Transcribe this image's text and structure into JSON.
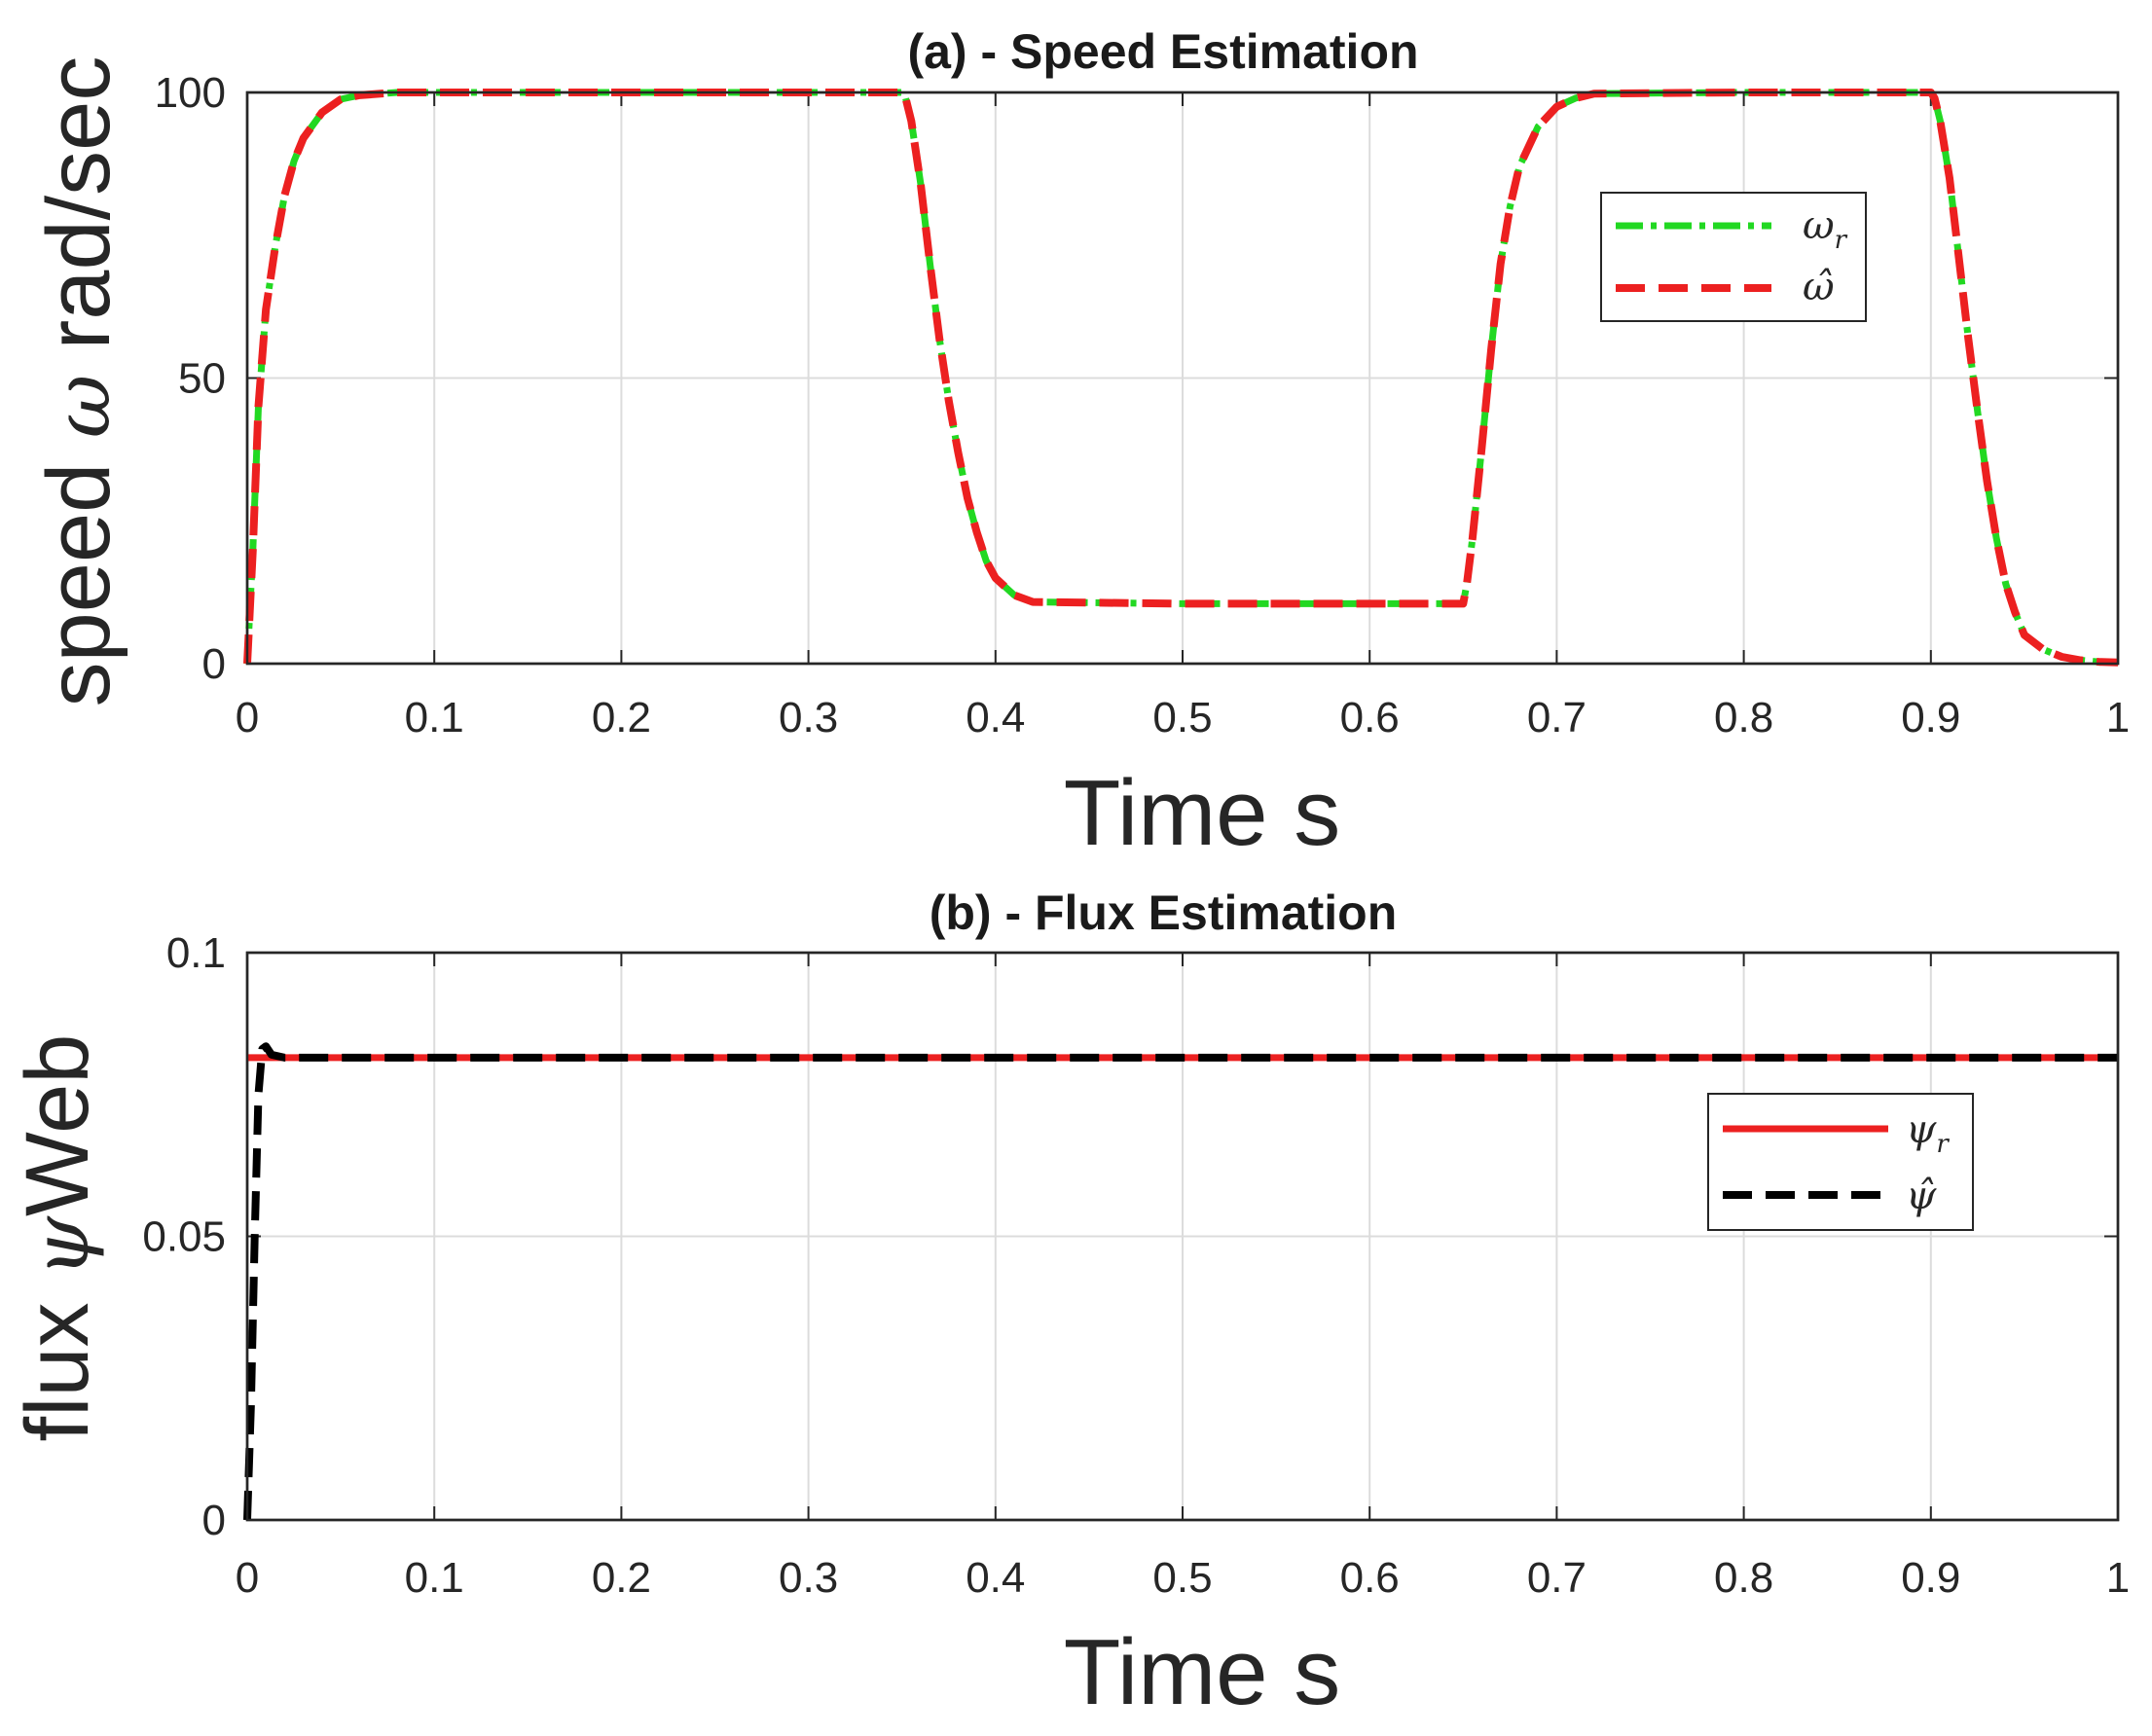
{
  "chart_data": [
    {
      "type": "line",
      "title": "(a) - Speed Estimation",
      "xlabel": "Time s",
      "ylabel_prefix": "speed ",
      "ylabel_symbol": "ω",
      "ylabel_suffix": " rad/sec",
      "xlim": [
        0,
        1
      ],
      "ylim": [
        0,
        100
      ],
      "xticks": [
        0,
        0.1,
        0.2,
        0.3,
        0.4,
        0.5,
        0.6,
        0.7,
        0.8,
        0.9,
        1
      ],
      "xtick_labels": [
        "0",
        "0.1",
        "0.2",
        "0.3",
        "0.4",
        "0.5",
        "0.6",
        "0.7",
        "0.8",
        "0.9",
        "1"
      ],
      "yticks": [
        0,
        50,
        100
      ],
      "ytick_labels": [
        "0",
        "50",
        "100"
      ],
      "grid": true,
      "legend_position": "upper-right",
      "series": [
        {
          "name": "ω_r",
          "legend_label": "ωr",
          "color": "#22d822",
          "dash": "dash-dot",
          "x": [
            0,
            0.003,
            0.006,
            0.01,
            0.015,
            0.02,
            0.025,
            0.03,
            0.04,
            0.05,
            0.06,
            0.08,
            0.1,
            0.2,
            0.3,
            0.35,
            0.352,
            0.355,
            0.36,
            0.365,
            0.37,
            0.375,
            0.38,
            0.385,
            0.39,
            0.395,
            0.4,
            0.41,
            0.42,
            0.5,
            0.6,
            0.65,
            0.652,
            0.655,
            0.66,
            0.665,
            0.67,
            0.675,
            0.68,
            0.69,
            0.7,
            0.71,
            0.72,
            0.8,
            0.9,
            0.902,
            0.905,
            0.91,
            0.915,
            0.92,
            0.925,
            0.93,
            0.935,
            0.94,
            0.945,
            0.95,
            0.96,
            0.97,
            0.98,
            0.99,
            1.0
          ],
          "y": [
            0,
            20,
            45,
            62,
            73,
            82,
            88,
            92,
            96.5,
            98.8,
            99.5,
            100,
            100,
            100,
            100,
            100,
            99,
            95,
            84,
            70,
            57,
            46,
            37,
            29,
            23,
            18,
            15,
            12,
            10.8,
            10.5,
            10.5,
            10.5,
            14,
            22,
            38,
            55,
            70,
            80,
            87,
            94,
            97.5,
            99,
            99.8,
            100,
            100,
            99,
            95,
            85,
            71,
            57,
            44,
            32,
            22,
            14,
            9,
            5,
            2.5,
            1.2,
            0.6,
            0.3,
            0.2
          ]
        },
        {
          "name": "ω̂",
          "legend_label": "ω̂",
          "color": "#ec2020",
          "dash": "dashed",
          "x": [
            0,
            0.003,
            0.006,
            0.01,
            0.015,
            0.02,
            0.025,
            0.03,
            0.04,
            0.05,
            0.06,
            0.08,
            0.1,
            0.2,
            0.3,
            0.35,
            0.352,
            0.355,
            0.36,
            0.365,
            0.37,
            0.375,
            0.38,
            0.385,
            0.39,
            0.395,
            0.4,
            0.41,
            0.42,
            0.5,
            0.6,
            0.65,
            0.652,
            0.655,
            0.66,
            0.665,
            0.67,
            0.675,
            0.68,
            0.69,
            0.7,
            0.71,
            0.72,
            0.8,
            0.9,
            0.902,
            0.905,
            0.91,
            0.915,
            0.92,
            0.925,
            0.93,
            0.935,
            0.94,
            0.945,
            0.95,
            0.96,
            0.97,
            0.98,
            0.99,
            1.0
          ],
          "y": [
            0,
            20,
            45,
            62,
            73,
            82,
            88,
            92,
            96.5,
            98.8,
            99.5,
            100,
            100,
            100,
            100,
            100,
            99,
            95,
            84,
            70,
            57,
            46,
            37,
            29,
            23,
            18,
            15,
            12,
            10.8,
            10.5,
            10.5,
            10.5,
            14,
            22,
            38,
            55,
            70,
            80,
            87,
            94,
            97.5,
            99,
            99.8,
            100,
            100,
            99,
            95,
            85,
            71,
            57,
            44,
            32,
            22,
            14,
            9,
            5,
            2.5,
            1.2,
            0.6,
            0.3,
            0.2
          ]
        }
      ]
    },
    {
      "type": "line",
      "title": "(b) - Flux Estimation",
      "xlabel": "Time s",
      "ylabel_prefix": "flux ",
      "ylabel_symbol": "ψ",
      "ylabel_suffix": "Web",
      "xlim": [
        0,
        1
      ],
      "ylim": [
        0,
        0.1
      ],
      "xticks": [
        0,
        0.1,
        0.2,
        0.3,
        0.4,
        0.5,
        0.6,
        0.7,
        0.8,
        0.9,
        1
      ],
      "xtick_labels": [
        "0",
        "0.1",
        "0.2",
        "0.3",
        "0.4",
        "0.5",
        "0.6",
        "0.7",
        "0.8",
        "0.9",
        "1"
      ],
      "yticks": [
        0,
        0.05,
        0.1
      ],
      "ytick_labels": [
        "0",
        "0.05",
        "0.1"
      ],
      "grid": true,
      "legend_position": "upper-right",
      "series": [
        {
          "name": "ψ_r",
          "legend_label": "ψr",
          "color": "#ec2020",
          "dash": "solid",
          "x": [
            0,
            1
          ],
          "y": [
            0.0815,
            0.0815
          ]
        },
        {
          "name": "ψ̂",
          "legend_label": "ψ̂",
          "color": "#000000",
          "dash": "dashed",
          "x": [
            0,
            0.002,
            0.004,
            0.006,
            0.008,
            0.01,
            0.013,
            0.02,
            0.1,
            0.5,
            0.9,
            1.0
          ],
          "y": [
            0,
            0.02,
            0.05,
            0.075,
            0.083,
            0.0835,
            0.082,
            0.0815,
            0.0815,
            0.0815,
            0.0815,
            0.0815
          ]
        }
      ]
    }
  ]
}
